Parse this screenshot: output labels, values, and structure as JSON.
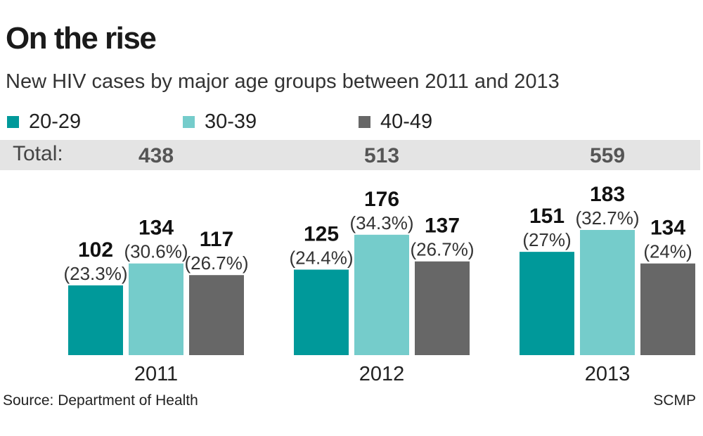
{
  "header": {
    "title": "On the rise",
    "subtitle": "New HIV cases by major age groups between 2011 and 2013"
  },
  "totals": {
    "label": "Total:",
    "values": [
      "438",
      "513",
      "559"
    ]
  },
  "footer": {
    "source": "Source: Department of Health",
    "credit": "SCMP"
  },
  "chart_data": {
    "type": "bar",
    "title": "On the rise",
    "subtitle": "New HIV cases by major age groups between 2011 and 2013",
    "categories": [
      "2011",
      "2012",
      "2013"
    ],
    "series": [
      {
        "name": "20-29",
        "color": "#00999a",
        "values": [
          102,
          125,
          151
        ],
        "labels": [
          "(23.3%)",
          "(24.4%)",
          "(27%)"
        ]
      },
      {
        "name": "30-39",
        "color": "#75cccb",
        "values": [
          134,
          176,
          183
        ],
        "labels": [
          "(30.6%)",
          "(34.3%)",
          "(32.7%)"
        ]
      },
      {
        "name": "40-49",
        "color": "#676767",
        "values": [
          117,
          137,
          134
        ],
        "labels": [
          "(26.7%)",
          "(26.7%)",
          "(24%)"
        ]
      }
    ],
    "ylim": [
      0,
      183
    ],
    "xlabel": "",
    "ylabel": "",
    "grid": false,
    "legend": "top-left"
  }
}
